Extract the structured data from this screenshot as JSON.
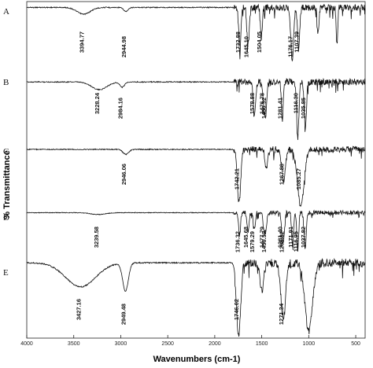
{
  "chart_data": {
    "type": "line",
    "title": "",
    "xlabel": "Wavenumbers (cm-1)",
    "ylabel": "% Transmittance",
    "xlim": [
      4000,
      400
    ],
    "x_reversed": true,
    "x_ticks": [
      4000,
      3500,
      3000,
      2500,
      2000,
      1500,
      1000,
      500
    ],
    "grid": false,
    "legend": "none",
    "series": [
      {
        "name": "A",
        "color": "#111111",
        "baseline": 0.96,
        "features": [
          {
            "x": 3394.77,
            "depth": 0.1,
            "width": 70
          },
          {
            "x": 2944.98,
            "depth": 0.06,
            "width": 25
          },
          {
            "x": 1732.88,
            "depth": 0.72,
            "width": 10
          },
          {
            "x": 1645.1,
            "depth": 0.55,
            "width": 12
          },
          {
            "x": 1504.05,
            "depth": 0.45,
            "width": 10
          },
          {
            "x": 1176.17,
            "depth": 0.8,
            "width": 14
          },
          {
            "x": 1107.39,
            "depth": 0.6,
            "width": 12
          },
          {
            "x": 900,
            "depth": 0.4,
            "width": 10
          },
          {
            "x": 700,
            "depth": 0.55,
            "width": 8
          }
        ],
        "peak_labels": [
          "3394.77",
          "2944.98",
          "1732.88",
          "1645.10",
          "1504.05",
          "1176.17",
          "1107.39"
        ]
      },
      {
        "name": "B",
        "color": "#111111",
        "baseline": 0.9,
        "features": [
          {
            "x": 3228.24,
            "depth": 0.12,
            "width": 80
          },
          {
            "x": 2984.16,
            "depth": 0.08,
            "width": 25
          },
          {
            "x": 1578.88,
            "depth": 0.55,
            "width": 12
          },
          {
            "x": 1456.32,
            "depth": 0.45,
            "width": 10
          },
          {
            "x": 1476.78,
            "depth": 0.4,
            "width": 10
          },
          {
            "x": 1281.41,
            "depth": 0.6,
            "width": 10
          },
          {
            "x": 1116.3,
            "depth": 0.85,
            "width": 12
          },
          {
            "x": 1035.85,
            "depth": 0.7,
            "width": 12
          }
        ],
        "peak_labels": [
          "3228.24",
          "2984.16",
          "1578.88",
          "1456.32",
          "1476.78",
          "1281.41",
          "1116.30",
          "1035.85"
        ]
      },
      {
        "name": "C",
        "color": "#111111",
        "baseline": 0.9,
        "features": [
          {
            "x": 2946.06,
            "depth": 0.08,
            "width": 30
          },
          {
            "x": 1742.21,
            "depth": 0.85,
            "width": 18
          },
          {
            "x": 1450,
            "depth": 0.3,
            "width": 15
          },
          {
            "x": 1267.88,
            "depth": 0.5,
            "width": 20
          },
          {
            "x": 1085.27,
            "depth": 0.9,
            "width": 35
          }
        ],
        "peak_labels": [
          "2946.06",
          "1742.21",
          "1267.88",
          "1085.27"
        ]
      },
      {
        "name": "D",
        "color": "#111111",
        "baseline": 0.92,
        "features": [
          {
            "x": 3239.58,
            "depth": 0.04,
            "width": 80
          },
          {
            "x": 1736.32,
            "depth": 0.55,
            "width": 10
          },
          {
            "x": 1645.68,
            "depth": 0.45,
            "width": 10
          },
          {
            "x": 1579.29,
            "depth": 0.4,
            "width": 10
          },
          {
            "x": 1477.79,
            "depth": 0.38,
            "width": 10
          },
          {
            "x": 1456.32,
            "depth": 0.35,
            "width": 10
          },
          {
            "x": 1281.4,
            "depth": 0.5,
            "width": 10
          },
          {
            "x": 1265.82,
            "depth": 0.45,
            "width": 10
          },
          {
            "x": 1171.91,
            "depth": 0.75,
            "width": 10
          },
          {
            "x": 1116.95,
            "depth": 0.85,
            "width": 10
          },
          {
            "x": 1037.82,
            "depth": 0.8,
            "width": 12
          }
        ],
        "peak_labels": [
          "3239.58",
          "1736.32",
          "1645.68",
          "1579.29",
          "1477.79",
          "1456.32",
          "1281.40",
          "1265.82",
          "1171.91",
          "1116.95",
          "1037.82"
        ]
      },
      {
        "name": "E",
        "color": "#111111",
        "baseline": 0.92,
        "features": [
          {
            "x": 3427.16,
            "depth": 0.3,
            "width": 160
          },
          {
            "x": 2949.48,
            "depth": 0.35,
            "width": 30
          },
          {
            "x": 1746.02,
            "depth": 0.9,
            "width": 22
          },
          {
            "x": 1500,
            "depth": 0.35,
            "width": 20
          },
          {
            "x": 1271.34,
            "depth": 0.7,
            "width": 25
          },
          {
            "x": 1000,
            "depth": 0.85,
            "width": 40
          }
        ],
        "peak_labels": [
          "3427.16",
          "2949.48",
          "1746.02",
          "1271.34"
        ]
      }
    ]
  }
}
